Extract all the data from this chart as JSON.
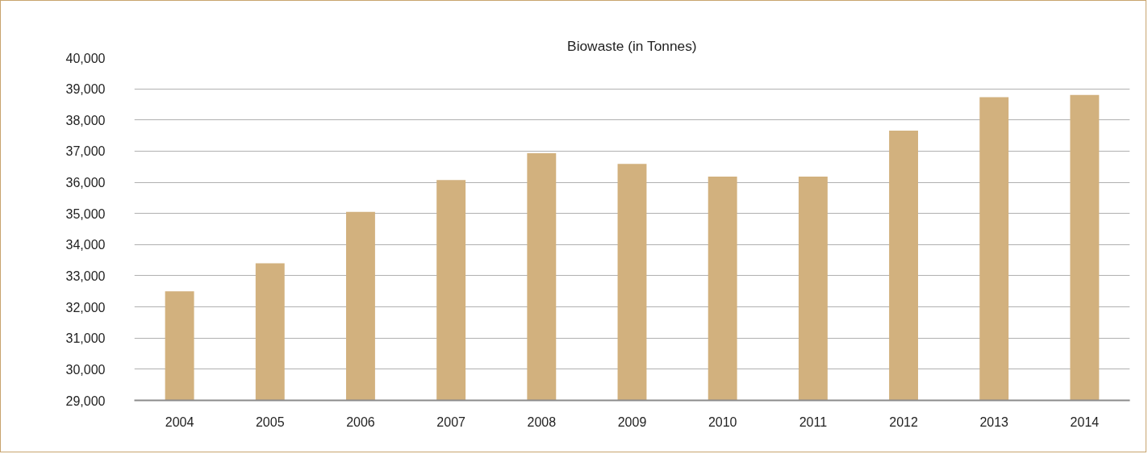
{
  "chart_data": {
    "type": "bar",
    "title": "Biowaste (in Tonnes)",
    "categories": [
      "2004",
      "2005",
      "2006",
      "2007",
      "2008",
      "2009",
      "2010",
      "2011",
      "2012",
      "2013",
      "2014"
    ],
    "series": [
      {
        "color": "#d2b17e",
        "values": [
          32500,
          33400,
          35050,
          36070,
          36930,
          36590,
          36180,
          36180,
          37660,
          38730,
          38800
        ]
      }
    ],
    "ylim": [
      29000,
      40000
    ],
    "yticks": [
      {
        "value": 29000,
        "label": "29,000"
      },
      {
        "value": 30000,
        "label": "30,000"
      },
      {
        "value": 31000,
        "label": "31,000"
      },
      {
        "value": 32000,
        "label": "32,000"
      },
      {
        "value": 33000,
        "label": "33,000"
      },
      {
        "value": 34000,
        "label": "34,000"
      },
      {
        "value": 35000,
        "label": "35,000"
      },
      {
        "value": 36000,
        "label": "36,000"
      },
      {
        "value": 37000,
        "label": "37,000"
      },
      {
        "value": 38000,
        "label": "38,000"
      },
      {
        "value": 39000,
        "label": "39,000"
      },
      {
        "value": 40000,
        "label": "40,000"
      }
    ],
    "grid": "y"
  }
}
